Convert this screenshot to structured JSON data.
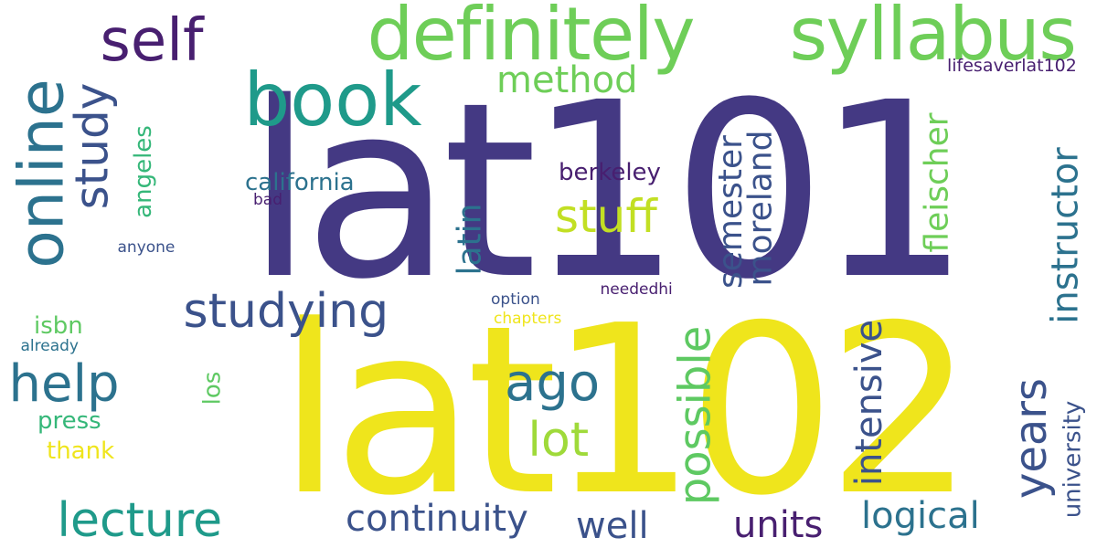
{
  "words": [
    {
      "text": "lat101",
      "color": "#443983",
      "orientation": "horizontal"
    },
    {
      "text": "lat102",
      "color": "#efe51c",
      "orientation": "horizontal"
    },
    {
      "text": "definitely",
      "color": "#6ece58",
      "orientation": "horizontal"
    },
    {
      "text": "syllabus",
      "color": "#6ece58",
      "orientation": "horizontal"
    },
    {
      "text": "self",
      "color": "#481f70",
      "orientation": "horizontal"
    },
    {
      "text": "book",
      "color": "#1f9a8a",
      "orientation": "horizontal"
    },
    {
      "text": "online",
      "color": "#2c728e",
      "orientation": "vertical"
    },
    {
      "text": "study",
      "color": "#3b528b",
      "orientation": "vertical"
    },
    {
      "text": "method",
      "color": "#6ece58",
      "orientation": "horizontal"
    },
    {
      "text": "lifesaverlat102",
      "color": "#481f70",
      "orientation": "horizontal"
    },
    {
      "text": "instructor",
      "color": "#2c728e",
      "orientation": "vertical"
    },
    {
      "text": "fleischer",
      "color": "#6ece58",
      "orientation": "vertical"
    },
    {
      "text": "semester",
      "color": "#3b528b",
      "orientation": "vertical"
    },
    {
      "text": "moreland",
      "color": "#3b528b",
      "orientation": "vertical"
    },
    {
      "text": "stuff",
      "color": "#c2df23",
      "orientation": "horizontal"
    },
    {
      "text": "berkeley",
      "color": "#481f70",
      "orientation": "horizontal"
    },
    {
      "text": "california",
      "color": "#2c728e",
      "orientation": "horizontal"
    },
    {
      "text": "bad",
      "color": "#481f70",
      "orientation": "horizontal"
    },
    {
      "text": "angeles",
      "color": "#35b779",
      "orientation": "vertical"
    },
    {
      "text": "latin",
      "color": "#2c728e",
      "orientation": "vertical"
    },
    {
      "text": "anyone",
      "color": "#3b528b",
      "orientation": "horizontal"
    },
    {
      "text": "studying",
      "color": "#3b528b",
      "orientation": "horizontal"
    },
    {
      "text": "option",
      "color": "#3b528b",
      "orientation": "horizontal"
    },
    {
      "text": "neededhi",
      "color": "#481f70",
      "orientation": "horizontal"
    },
    {
      "text": "chapters",
      "color": "#efe51c",
      "orientation": "horizontal"
    },
    {
      "text": "isbn",
      "color": "#5ec962",
      "orientation": "horizontal"
    },
    {
      "text": "already",
      "color": "#2c728e",
      "orientation": "horizontal"
    },
    {
      "text": "possible",
      "color": "#5ec962",
      "orientation": "vertical"
    },
    {
      "text": "intensive",
      "color": "#3b528b",
      "orientation": "vertical"
    },
    {
      "text": "years",
      "color": "#3b528b",
      "orientation": "vertical"
    },
    {
      "text": "university",
      "color": "#3b528b",
      "orientation": "vertical"
    },
    {
      "text": "help",
      "color": "#2c728e",
      "orientation": "horizontal"
    },
    {
      "text": "ago",
      "color": "#2c728e",
      "orientation": "horizontal"
    },
    {
      "text": "los",
      "color": "#5ec962",
      "orientation": "vertical"
    },
    {
      "text": "lot",
      "color": "#9fda3a",
      "orientation": "horizontal"
    },
    {
      "text": "press",
      "color": "#35b779",
      "orientation": "horizontal"
    },
    {
      "text": "thank",
      "color": "#efe51c",
      "orientation": "horizontal"
    },
    {
      "text": "lecture",
      "color": "#1f9a8a",
      "orientation": "horizontal"
    },
    {
      "text": "continuity",
      "color": "#3b528b",
      "orientation": "horizontal"
    },
    {
      "text": "well",
      "color": "#3b528b",
      "orientation": "horizontal"
    },
    {
      "text": "units",
      "color": "#481f70",
      "orientation": "horizontal"
    },
    {
      "text": "logical",
      "color": "#2c728e",
      "orientation": "horizontal"
    }
  ]
}
